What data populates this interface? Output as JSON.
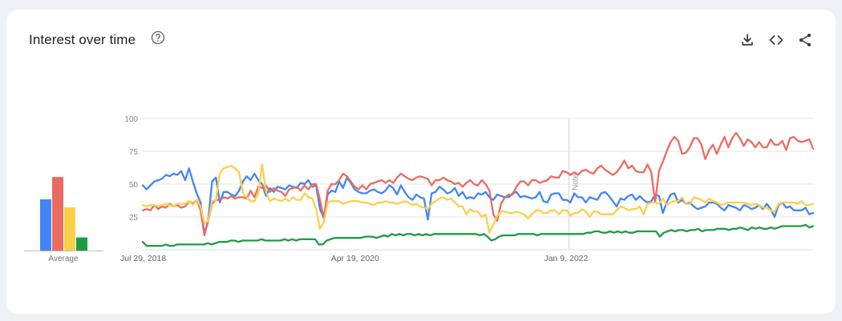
{
  "header": {
    "title": "Interest over time"
  },
  "icons": {
    "help": "help-circle-icon",
    "download": "download-icon",
    "embed": "embed-code-icon",
    "share": "share-icon"
  },
  "averages": {
    "label": "Average",
    "values": [
      39,
      56,
      33,
      10
    ],
    "colors": [
      "#4285f4",
      "#ea6b5f",
      "#fbcf4a",
      "#1e9c43"
    ]
  },
  "chart_data": {
    "type": "line",
    "x_ticks": [
      "Jul 29, 2018",
      "Apr 19, 2020",
      "Jan 9, 2022"
    ],
    "y_ticks": [
      25,
      50,
      75,
      100
    ],
    "ylim": [
      0,
      100
    ],
    "grid": true,
    "annotation": {
      "label": "Note",
      "at": "Jan 9, 2022"
    },
    "x_start": "Jul 29, 2018",
    "x_end": "Jan 2024",
    "series": [
      {
        "color": "#4285f4",
        "values": [
          49,
          46,
          49,
          52,
          53,
          54,
          57,
          56,
          58,
          57,
          60,
          53,
          62,
          52,
          43,
          36,
          12,
          23,
          52,
          55,
          36,
          44,
          44,
          42,
          41,
          45,
          52,
          56,
          53,
          58,
          53,
          50,
          41,
          47,
          44,
          48,
          47,
          46,
          49,
          48,
          47,
          51,
          50,
          53,
          48,
          49,
          31,
          24,
          42,
          45,
          44,
          52,
          47,
          55,
          51,
          46,
          44,
          43,
          43,
          45,
          46,
          44,
          43,
          45,
          49,
          47,
          42,
          49,
          44,
          40,
          38,
          42,
          40,
          39,
          23,
          43,
          44,
          48,
          46,
          43,
          44,
          47,
          41,
          44,
          39,
          40,
          39,
          43,
          42,
          44,
          40,
          38,
          42,
          41,
          40,
          40,
          43,
          44,
          40,
          41,
          40,
          39,
          40,
          44,
          37,
          36,
          42,
          43,
          43,
          38,
          38,
          36,
          43,
          40,
          40,
          36,
          40,
          39,
          38,
          43,
          44,
          41,
          37,
          33,
          39,
          38,
          41,
          42,
          38,
          41,
          38,
          36,
          37,
          42,
          41,
          28,
          36,
          42,
          43,
          36,
          38,
          35,
          36,
          33,
          31,
          32,
          33,
          36,
          36,
          35,
          32,
          30,
          34,
          33,
          32,
          30,
          34,
          33,
          31,
          32,
          34,
          31,
          35,
          31,
          25,
          34,
          36,
          32,
          33,
          30,
          30,
          30,
          32,
          27,
          28
        ]
      },
      {
        "color": "#ea6b5f",
        "values": [
          30,
          31,
          30,
          34,
          31,
          33,
          32,
          35,
          33,
          34,
          32,
          33,
          37,
          35,
          38,
          30,
          11,
          22,
          35,
          38,
          38,
          40,
          39,
          41,
          39,
          40,
          40,
          39,
          45,
          40,
          48,
          47,
          49,
          44,
          47,
          45,
          44,
          41,
          46,
          47,
          48,
          45,
          49,
          46,
          50,
          50,
          38,
          24,
          45,
          50,
          50,
          53,
          58,
          56,
          52,
          48,
          46,
          49,
          46,
          50,
          51,
          52,
          53,
          51,
          53,
          51,
          55,
          58,
          56,
          54,
          53,
          55,
          56,
          55,
          54,
          49,
          53,
          53,
          55,
          53,
          52,
          50,
          51,
          48,
          51,
          53,
          50,
          49,
          53,
          50,
          45,
          27,
          22,
          35,
          40,
          42,
          42,
          48,
          52,
          52,
          49,
          53,
          53,
          51,
          52,
          53,
          56,
          55,
          55,
          60,
          59,
          57,
          59,
          57,
          60,
          61,
          59,
          58,
          62,
          64,
          61,
          59,
          57,
          59,
          63,
          68,
          62,
          64,
          60,
          59,
          59,
          65,
          59,
          36,
          60,
          67,
          75,
          82,
          86,
          83,
          73,
          74,
          78,
          85,
          85,
          80,
          69,
          76,
          80,
          73,
          80,
          86,
          78,
          85,
          89,
          85,
          79,
          84,
          82,
          78,
          82,
          78,
          78,
          84,
          80,
          80,
          83,
          76,
          85,
          86,
          83,
          82,
          83,
          84,
          77
        ]
      },
      {
        "color": "#fbcf4a",
        "values": [
          34,
          33,
          34,
          34,
          33,
          34,
          35,
          34,
          33,
          35,
          35,
          35,
          37,
          34,
          38,
          33,
          20,
          22,
          37,
          38,
          58,
          62,
          63,
          64,
          62,
          59,
          43,
          40,
          37,
          37,
          43,
          65,
          44,
          37,
          39,
          38,
          37,
          39,
          37,
          40,
          38,
          38,
          43,
          40,
          39,
          31,
          16,
          21,
          36,
          37,
          37,
          37,
          35,
          36,
          37,
          37,
          37,
          36,
          36,
          35,
          34,
          36,
          36,
          37,
          36,
          36,
          35,
          36,
          37,
          36,
          34,
          35,
          33,
          32,
          31,
          35,
          37,
          39,
          40,
          38,
          39,
          36,
          33,
          33,
          27,
          31,
          29,
          29,
          25,
          27,
          13,
          19,
          26,
          29,
          29,
          28,
          28,
          29,
          28,
          27,
          24,
          27,
          30,
          30,
          28,
          28,
          30,
          30,
          27,
          30,
          30,
          26,
          28,
          28,
          31,
          29,
          25,
          29,
          29,
          27,
          27,
          27,
          27,
          30,
          33,
          32,
          30,
          31,
          31,
          33,
          27,
          35,
          36,
          36,
          35,
          39,
          34,
          36,
          37,
          37,
          40,
          35,
          35,
          40,
          39,
          38,
          36,
          39,
          37,
          36,
          34,
          35,
          36,
          36,
          36,
          36,
          36,
          35,
          34,
          35,
          34,
          32,
          32,
          30,
          29,
          35,
          36,
          36,
          36,
          36,
          35,
          37,
          34,
          34,
          35
        ]
      },
      {
        "color": "#1e9c43",
        "values": [
          6,
          3,
          3,
          3,
          3,
          3,
          4,
          3,
          3,
          4,
          4,
          4,
          4,
          4,
          4,
          4,
          4,
          5,
          4,
          5,
          6,
          6,
          6,
          7,
          7,
          6,
          7,
          7,
          7,
          7,
          7,
          8,
          7,
          7,
          7,
          7,
          7,
          8,
          7,
          8,
          7,
          8,
          8,
          8,
          8,
          8,
          4,
          4,
          7,
          8,
          9,
          9,
          9,
          9,
          9,
          9,
          9,
          9,
          10,
          10,
          10,
          9,
          10,
          11,
          10,
          12,
          11,
          12,
          11,
          12,
          12,
          11,
          12,
          11,
          12,
          11,
          12,
          12,
          12,
          12,
          12,
          12,
          12,
          12,
          12,
          12,
          12,
          12,
          11,
          12,
          10,
          7,
          8,
          10,
          11,
          11,
          11,
          11,
          12,
          12,
          12,
          12,
          12,
          11,
          12,
          12,
          12,
          12,
          12,
          12,
          12,
          12,
          12,
          12,
          12,
          12,
          13,
          13,
          14,
          14,
          13,
          13,
          14,
          13,
          14,
          13,
          14,
          13,
          13,
          14,
          14,
          14,
          14,
          14,
          14,
          10,
          13,
          14,
          15,
          14,
          15,
          15,
          14,
          15,
          15,
          16,
          14,
          15,
          15,
          15,
          16,
          16,
          16,
          15,
          16,
          16,
          17,
          16,
          15,
          17,
          16,
          17,
          16,
          16,
          17,
          16,
          17,
          18,
          18,
          18,
          18,
          18,
          18,
          19,
          17,
          18
        ]
      }
    ]
  }
}
